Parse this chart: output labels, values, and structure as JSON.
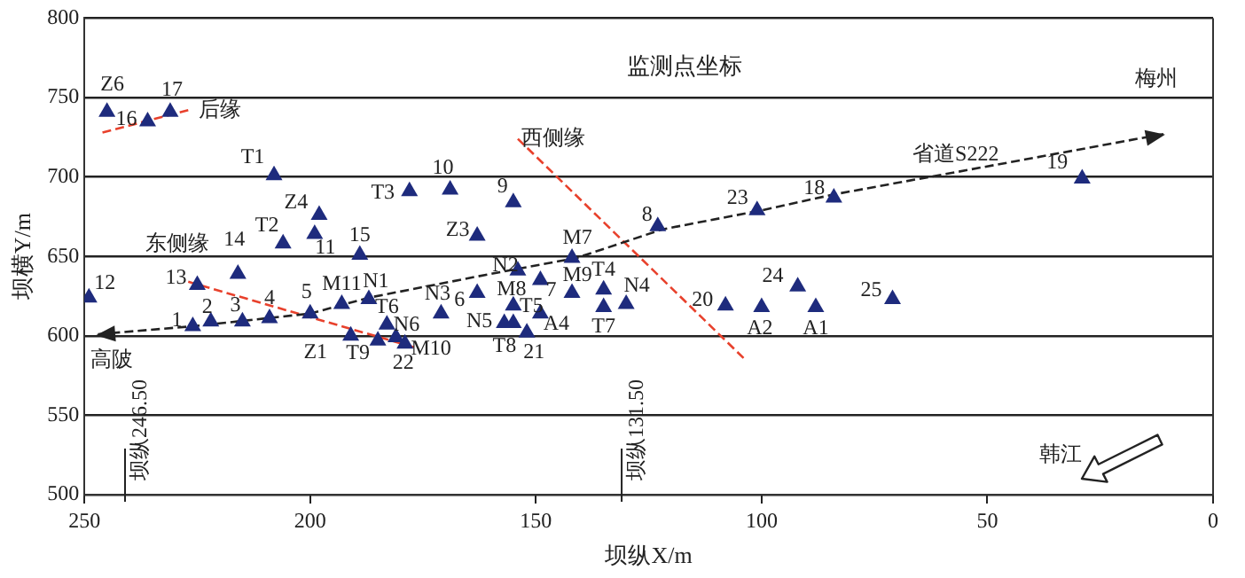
{
  "chart_data": {
    "type": "scatter",
    "title": "监测点坐标",
    "xlabel": "坝纵X/m",
    "ylabel": "坝横Y/m",
    "xlim": [
      250,
      0
    ],
    "xticks": [
      250,
      200,
      150,
      100,
      50,
      0
    ],
    "ylim": [
      500,
      800
    ],
    "yticks": [
      500,
      550,
      600,
      650,
      700,
      750,
      800
    ],
    "grid": "y",
    "legend": false,
    "series": [
      {
        "marker": "triangle",
        "color": "#1e2b7d",
        "x": [
          245,
          236,
          231,
          208,
          178,
          169,
          155,
          198,
          199,
          206,
          189,
          163,
          142,
          123,
          101,
          84,
          29,
          249,
          225,
          216,
          226,
          222,
          215,
          209,
          200,
          193,
          187,
          183,
          191,
          185,
          181,
          179,
          171,
          163,
          154,
          149,
          155,
          149,
          157,
          155,
          152,
          142,
          135,
          135,
          130,
          108,
          100,
          88,
          92,
          71
        ],
        "values": [
          741,
          735,
          741,
          701,
          691,
          692,
          684,
          676,
          664,
          658,
          651,
          663,
          649,
          669,
          679,
          687,
          699,
          624,
          632,
          639,
          606,
          609,
          609,
          611,
          614,
          620,
          623,
          607,
          600,
          597,
          599,
          595,
          614,
          627,
          641,
          635,
          619,
          614,
          608,
          608,
          602,
          627,
          629,
          618,
          620,
          619,
          618,
          618,
          631,
          623
        ]
      },
      {
        "type": "line",
        "marker": "none",
        "line_style": "dashed",
        "color": "#222222",
        "x": [
          247,
          226,
          200,
          187,
          160,
          141,
          122,
          100,
          84,
          57,
          11
        ],
        "values": [
          601,
          606,
          614,
          624,
          639,
          649,
          667,
          679,
          689,
          703,
          727
        ]
      },
      {
        "type": "line",
        "marker": "none",
        "line_style": "dashed",
        "color": "#e8412c",
        "x": [
          246,
          227
        ],
        "values": [
          728,
          742
        ]
      },
      {
        "type": "line",
        "marker": "none",
        "line_style": "dashed",
        "color": "#e8412c",
        "x": [
          227,
          176
        ],
        "values": [
          634,
          592
        ]
      },
      {
        "type": "line",
        "marker": "none",
        "line_style": "dashed",
        "color": "#e8412c",
        "x": [
          154,
          104
        ],
        "values": [
          724,
          586
        ]
      }
    ],
    "ref_lines": [
      {
        "axis": "x",
        "value": 241,
        "label": "坝纵246.50"
      },
      {
        "axis": "x",
        "value": 131,
        "label": "坝纵131.50"
      }
    ],
    "annotations": [
      {
        "text": "Z6",
        "x": 245,
        "y": 741
      },
      {
        "text": "16",
        "x": 236,
        "y": 735
      },
      {
        "text": "17",
        "x": 231,
        "y": 741
      },
      {
        "text": "T1",
        "x": 208,
        "y": 701
      },
      {
        "text": "T3",
        "x": 178,
        "y": 691
      },
      {
        "text": "10",
        "x": 169,
        "y": 692
      },
      {
        "text": "9",
        "x": 155,
        "y": 684
      },
      {
        "text": "Z4",
        "x": 198,
        "y": 676
      },
      {
        "text": "11",
        "x": 199,
        "y": 664
      },
      {
        "text": "T2",
        "x": 206,
        "y": 658
      },
      {
        "text": "15",
        "x": 189,
        "y": 651
      },
      {
        "text": "Z3",
        "x": 163,
        "y": 663
      },
      {
        "text": "M7",
        "x": 142,
        "y": 649
      },
      {
        "text": "8",
        "x": 123,
        "y": 669
      },
      {
        "text": "23",
        "x": 101,
        "y": 679
      },
      {
        "text": "18",
        "x": 84,
        "y": 687
      },
      {
        "text": "19",
        "x": 29,
        "y": 699
      },
      {
        "text": "12",
        "x": 249,
        "y": 624
      },
      {
        "text": "13",
        "x": 225,
        "y": 632
      },
      {
        "text": "14",
        "x": 216,
        "y": 639
      },
      {
        "text": "1",
        "x": 226,
        "y": 606
      },
      {
        "text": "2",
        "x": 222,
        "y": 609
      },
      {
        "text": "3",
        "x": 215,
        "y": 609
      },
      {
        "text": "4",
        "x": 209,
        "y": 611
      },
      {
        "text": "5",
        "x": 200,
        "y": 614
      },
      {
        "text": "M11",
        "x": 193,
        "y": 620
      },
      {
        "text": "N1",
        "x": 187,
        "y": 623
      },
      {
        "text": "T6",
        "x": 183,
        "y": 607
      },
      {
        "text": "T9",
        "x": 191,
        "y": 600
      },
      {
        "text": "Z1",
        "x": 200,
        "y": 614
      },
      {
        "text": "N6",
        "x": 181,
        "y": 599
      },
      {
        "text": "M10",
        "x": 185,
        "y": 597
      },
      {
        "text": "22",
        "x": 179,
        "y": 595
      },
      {
        "text": "N3",
        "x": 171,
        "y": 614
      },
      {
        "text": "6",
        "x": 163,
        "y": 627
      },
      {
        "text": "N2",
        "x": 154,
        "y": 641
      },
      {
        "text": "7",
        "x": 149,
        "y": 635
      },
      {
        "text": "M8",
        "x": 155,
        "y": 619
      },
      {
        "text": "T5",
        "x": 149,
        "y": 614
      },
      {
        "text": "A4",
        "x": 149,
        "y": 614
      },
      {
        "text": "N5",
        "x": 157,
        "y": 608
      },
      {
        "text": "T8",
        "x": 155,
        "y": 608
      },
      {
        "text": "21",
        "x": 152,
        "y": 602
      },
      {
        "text": "M9",
        "x": 142,
        "y": 627
      },
      {
        "text": "T4",
        "x": 135,
        "y": 629
      },
      {
        "text": "T7",
        "x": 135,
        "y": 618
      },
      {
        "text": "N4",
        "x": 130,
        "y": 620
      },
      {
        "text": "20",
        "x": 108,
        "y": 619
      },
      {
        "text": "A2",
        "x": 100,
        "y": 618
      },
      {
        "text": "A1",
        "x": 88,
        "y": 618
      },
      {
        "text": "24",
        "x": 92,
        "y": 631
      },
      {
        "text": "25",
        "x": 71,
        "y": 623
      },
      {
        "text": "梅州",
        "x": 11,
        "y": 727
      },
      {
        "text": "高陂",
        "x": 247,
        "y": 601
      },
      {
        "text": "省道S222",
        "x": 57,
        "y": 703
      },
      {
        "text": "后缘",
        "x": 227,
        "y": 742
      },
      {
        "text": "东侧缘",
        "x": 227,
        "y": 634
      },
      {
        "text": "西侧缘",
        "x": 154,
        "y": 724
      },
      "韩江"
    ]
  }
}
